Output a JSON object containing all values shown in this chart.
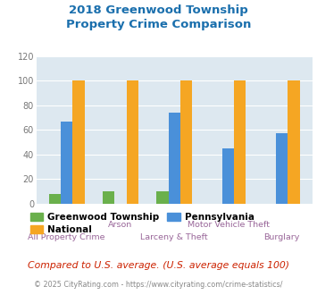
{
  "title": "2018 Greenwood Township\nProperty Crime Comparison",
  "title_color": "#1a6fad",
  "categories": [
    "All Property Crime",
    "Arson",
    "Larceny & Theft",
    "Motor Vehicle Theft",
    "Burglary"
  ],
  "x_labels_row1": [
    "",
    "Arson",
    "",
    "Motor Vehicle Theft",
    ""
  ],
  "x_labels_row2": [
    "All Property Crime",
    "",
    "Larceny & Theft",
    "",
    "Burglary"
  ],
  "greenwood": [
    8,
    10,
    10,
    0,
    0
  ],
  "national": [
    100,
    100,
    100,
    100,
    100
  ],
  "pennsylvania": [
    67,
    0,
    74,
    45,
    57
  ],
  "greenwood_color": "#6ab04c",
  "national_color": "#f5a623",
  "pennsylvania_color": "#4a90d9",
  "ylim": [
    0,
    120
  ],
  "yticks": [
    0,
    20,
    40,
    60,
    80,
    100,
    120
  ],
  "bar_width": 0.22,
  "plot_bg_color": "#dde8f0",
  "legend_labels": [
    "Greenwood Township",
    "National",
    "Pennsylvania"
  ],
  "note": "Compared to U.S. average. (U.S. average equals 100)",
  "note_color": "#cc2200",
  "footer": "© 2025 CityRating.com - https://www.cityrating.com/crime-statistics/",
  "footer_color": "#888888",
  "xlabel_color": "#996699",
  "ylabel_color": "#777777"
}
